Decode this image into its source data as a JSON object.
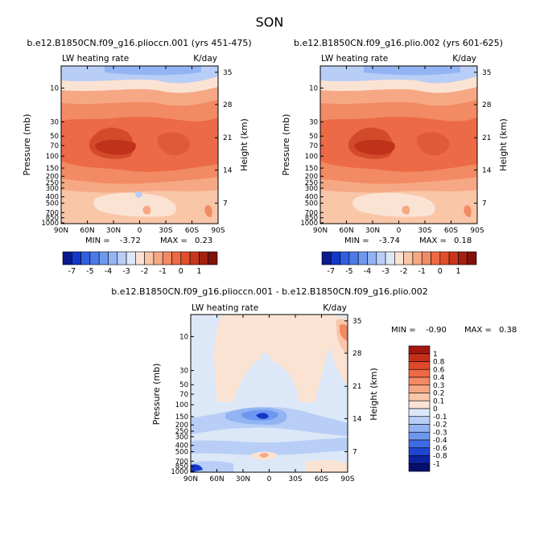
{
  "figure": {
    "season": "SON"
  },
  "chart_data": [
    {
      "type": "heatmap",
      "title": "b.e12.B1850CN.f09_g16.plioccn.001 (yrs 451-475)",
      "left_label": "LW heating rate",
      "right_label": "K/day",
      "ylabel": "Pressure (mb)",
      "ylabel_right": "Height (km)",
      "x_ticks": [
        "90N",
        "60N",
        "30N",
        "0",
        "30S",
        "60S",
        "90S"
      ],
      "y_ticks": [
        "10",
        "30",
        "50",
        "70",
        "100",
        "150",
        "200",
        "250",
        "300",
        "400",
        "500",
        "700",
        "850",
        "1000"
      ],
      "y_ticks_right": [
        "35",
        "28",
        "21",
        "14",
        "7"
      ],
      "stats": {
        "min_label": "MIN =",
        "min": "-3.72",
        "max_label": "MAX =",
        "max": "0.23"
      }
    },
    {
      "type": "heatmap",
      "title": "b.e12.B1850CN.f09_g16.plio.002 (yrs 601-625)",
      "left_label": "LW heating rate",
      "right_label": "K/day",
      "ylabel": "Pressure (mb)",
      "ylabel_right": "Height (km)",
      "x_ticks": [
        "90N",
        "60N",
        "30N",
        "0",
        "30S",
        "60S",
        "90S"
      ],
      "y_ticks": [
        "10",
        "30",
        "50",
        "70",
        "100",
        "150",
        "200",
        "250",
        "300",
        "400",
        "500",
        "700",
        "850",
        "1000"
      ],
      "y_ticks_right": [
        "35",
        "28",
        "21",
        "14",
        "7"
      ],
      "stats": {
        "min_label": "MIN =",
        "min": "-3.74",
        "max_label": "MAX =",
        "max": "0.18"
      }
    },
    {
      "type": "heatmap",
      "title": "b.e12.B1850CN.f09_g16.plioccn.001 - b.e12.B1850CN.f09_g16.plio.002",
      "left_label": "LW heating rate",
      "right_label": "K/day",
      "ylabel": "Pressure (mb)",
      "ylabel_right": "Height (km)",
      "x_ticks": [
        "90N",
        "60N",
        "30N",
        "0",
        "30S",
        "60S",
        "90S"
      ],
      "y_ticks": [
        "10",
        "30",
        "50",
        "70",
        "100",
        "150",
        "200",
        "250",
        "300",
        "400",
        "500",
        "700",
        "850",
        "1000"
      ],
      "y_ticks_right": [
        "35",
        "28",
        "21",
        "14",
        "7"
      ],
      "stats": {
        "min_label": "MIN =",
        "min": "-0.90",
        "max_label": "MAX =",
        "max": "0.38"
      }
    }
  ],
  "colorbar_top": {
    "labels": [
      "-7",
      "-5",
      "-4",
      "-3",
      "-2",
      "-1",
      "0",
      "1"
    ],
    "colors": [
      "#0a1a8c",
      "#1537c9",
      "#2f5ee0",
      "#4b7ae8",
      "#6e98ef",
      "#93b4f3",
      "#b8cef6",
      "#dce8f8",
      "#fbe3d4",
      "#f9c6a8",
      "#f6a884",
      "#f28a63",
      "#ec6a45",
      "#e04e2c",
      "#c7361c",
      "#a3200f",
      "#7f1209"
    ]
  },
  "colorbar_diff": {
    "labels": [
      "1",
      "0.8",
      "0.6",
      "0.4",
      "0.3",
      "0.2",
      "0.1",
      "0",
      "-0.1",
      "-0.2",
      "-0.3",
      "-0.4",
      "-0.6",
      "-0.8",
      "-1"
    ],
    "colors": [
      "#a3170f",
      "#c52f1a",
      "#e0482a",
      "#ed6a44",
      "#f28a63",
      "#f6a884",
      "#f9c6a8",
      "#fbe3d4",
      "#dce8f8",
      "#b8cef6",
      "#93b4f3",
      "#6e98ef",
      "#3f6ce4",
      "#1f45d0",
      "#0e22a0",
      "#06106c"
    ]
  }
}
